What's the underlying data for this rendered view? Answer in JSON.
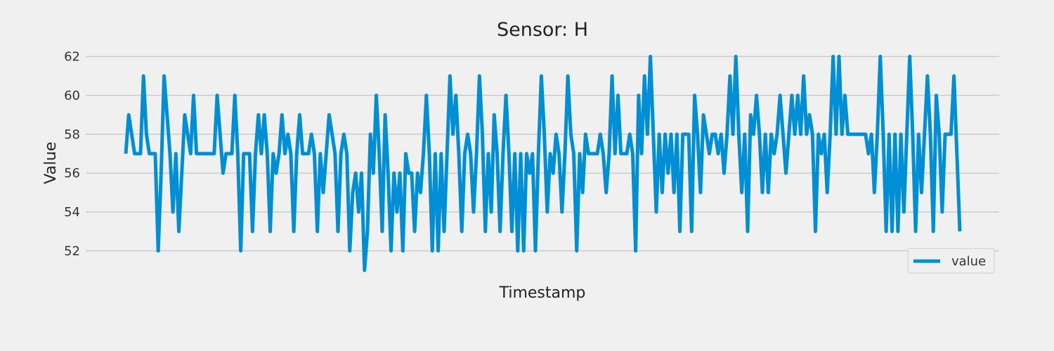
{
  "chart_data": {
    "type": "line",
    "title": "Sensor: H",
    "xlabel": "Timestamp",
    "ylabel": "Value",
    "ylim": [
      51,
      62.2
    ],
    "yticks": [
      52,
      54,
      56,
      58,
      60,
      62
    ],
    "xticks_visible": false,
    "grid": "horizontal",
    "legend_position": "lower-right",
    "series": [
      {
        "name": "value",
        "color": "#008fd5",
        "values": [
          57,
          59,
          58,
          57,
          57,
          57,
          61,
          58,
          57,
          57,
          57,
          52,
          56,
          61,
          59,
          57,
          54,
          57,
          53,
          56,
          59,
          58,
          57,
          60,
          57,
          57,
          57,
          57,
          57,
          57,
          57,
          60,
          58,
          56,
          57,
          57,
          57,
          60,
          57,
          52,
          57,
          57,
          57,
          53,
          57,
          59,
          57,
          59,
          57,
          53,
          57,
          56,
          57,
          59,
          57,
          58,
          57,
          53,
          57,
          59,
          57,
          57,
          57,
          58,
          57,
          53,
          57,
          55,
          57,
          59,
          58,
          57,
          53,
          57,
          58,
          57,
          52,
          55,
          56,
          54,
          56,
          51,
          53,
          58,
          56,
          60,
          57,
          53,
          59,
          56,
          52,
          56,
          54,
          56,
          52,
          57,
          56,
          56,
          53,
          56,
          55,
          57,
          60,
          57,
          52,
          57,
          52,
          57,
          53,
          57,
          61,
          58,
          60,
          57,
          53,
          57,
          58,
          57,
          54,
          57,
          61,
          58,
          53,
          57,
          54,
          59,
          57,
          53,
          57,
          60,
          57,
          53,
          57,
          52,
          57,
          52,
          57,
          56,
          57,
          52,
          57,
          61,
          58,
          54,
          57,
          56,
          58,
          57,
          54,
          57,
          61,
          58,
          57,
          52,
          57,
          55,
          58,
          57,
          57,
          57,
          57,
          58,
          57,
          55,
          57,
          61,
          57,
          60,
          57,
          57,
          57,
          58,
          57,
          52,
          60,
          57,
          61,
          58,
          62,
          58,
          54,
          58,
          55,
          58,
          56,
          58,
          55,
          58,
          53,
          58,
          58,
          58,
          53,
          60,
          58,
          55,
          59,
          58,
          57,
          58,
          58,
          57,
          58,
          56,
          58,
          61,
          58,
          62,
          58,
          55,
          58,
          53,
          59,
          58,
          60,
          58,
          55,
          58,
          55,
          58,
          57,
          58,
          60,
          58,
          56,
          58,
          60,
          58,
          60,
          58,
          61,
          58,
          59,
          58,
          53,
          58,
          57,
          58,
          55,
          58,
          62,
          58,
          62,
          58,
          60,
          58,
          58,
          58,
          58,
          58,
          58,
          58,
          57,
          58,
          55,
          58,
          62,
          58,
          53,
          58,
          53,
          58,
          53,
          58,
          54,
          58,
          62,
          58,
          53,
          58,
          55,
          58,
          61,
          58,
          53,
          60,
          58,
          54,
          58,
          58,
          58,
          61,
          57,
          53
        ]
      }
    ]
  }
}
